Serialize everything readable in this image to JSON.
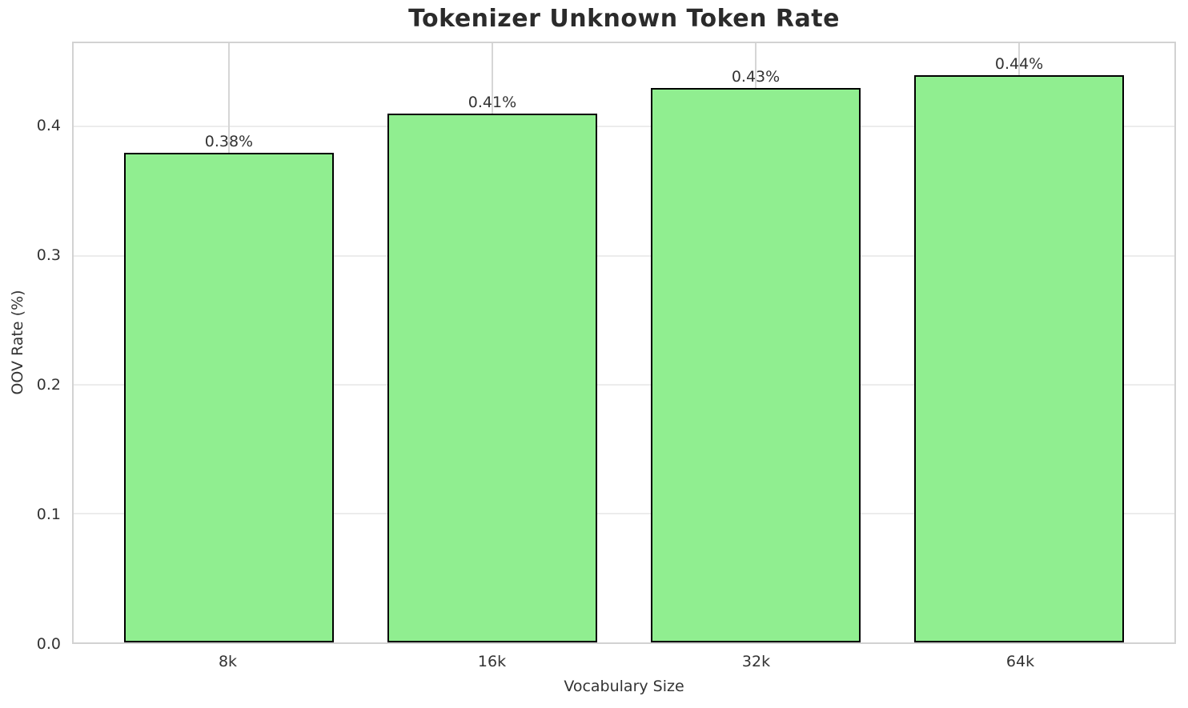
{
  "chart_data": {
    "type": "bar",
    "title": "Tokenizer Unknown Token Rate",
    "xlabel": "Vocabulary Size",
    "ylabel": "OOV Rate (%)",
    "categories": [
      "8k",
      "16k",
      "32k",
      "64k"
    ],
    "values": [
      0.38,
      0.41,
      0.43,
      0.44
    ],
    "bar_labels": [
      "0.38%",
      "0.41%",
      "0.43%",
      "0.44%"
    ],
    "ylim": [
      0,
      0.4648
    ],
    "yticks": [
      0.0,
      0.1,
      0.2,
      0.3,
      0.4
    ],
    "ytick_labels": [
      "0.0",
      "0.1",
      "0.2",
      "0.3",
      "0.4"
    ],
    "grid": true,
    "legend": "none",
    "bar_color": "#90EE90",
    "bar_edge_color": "#000000"
  }
}
